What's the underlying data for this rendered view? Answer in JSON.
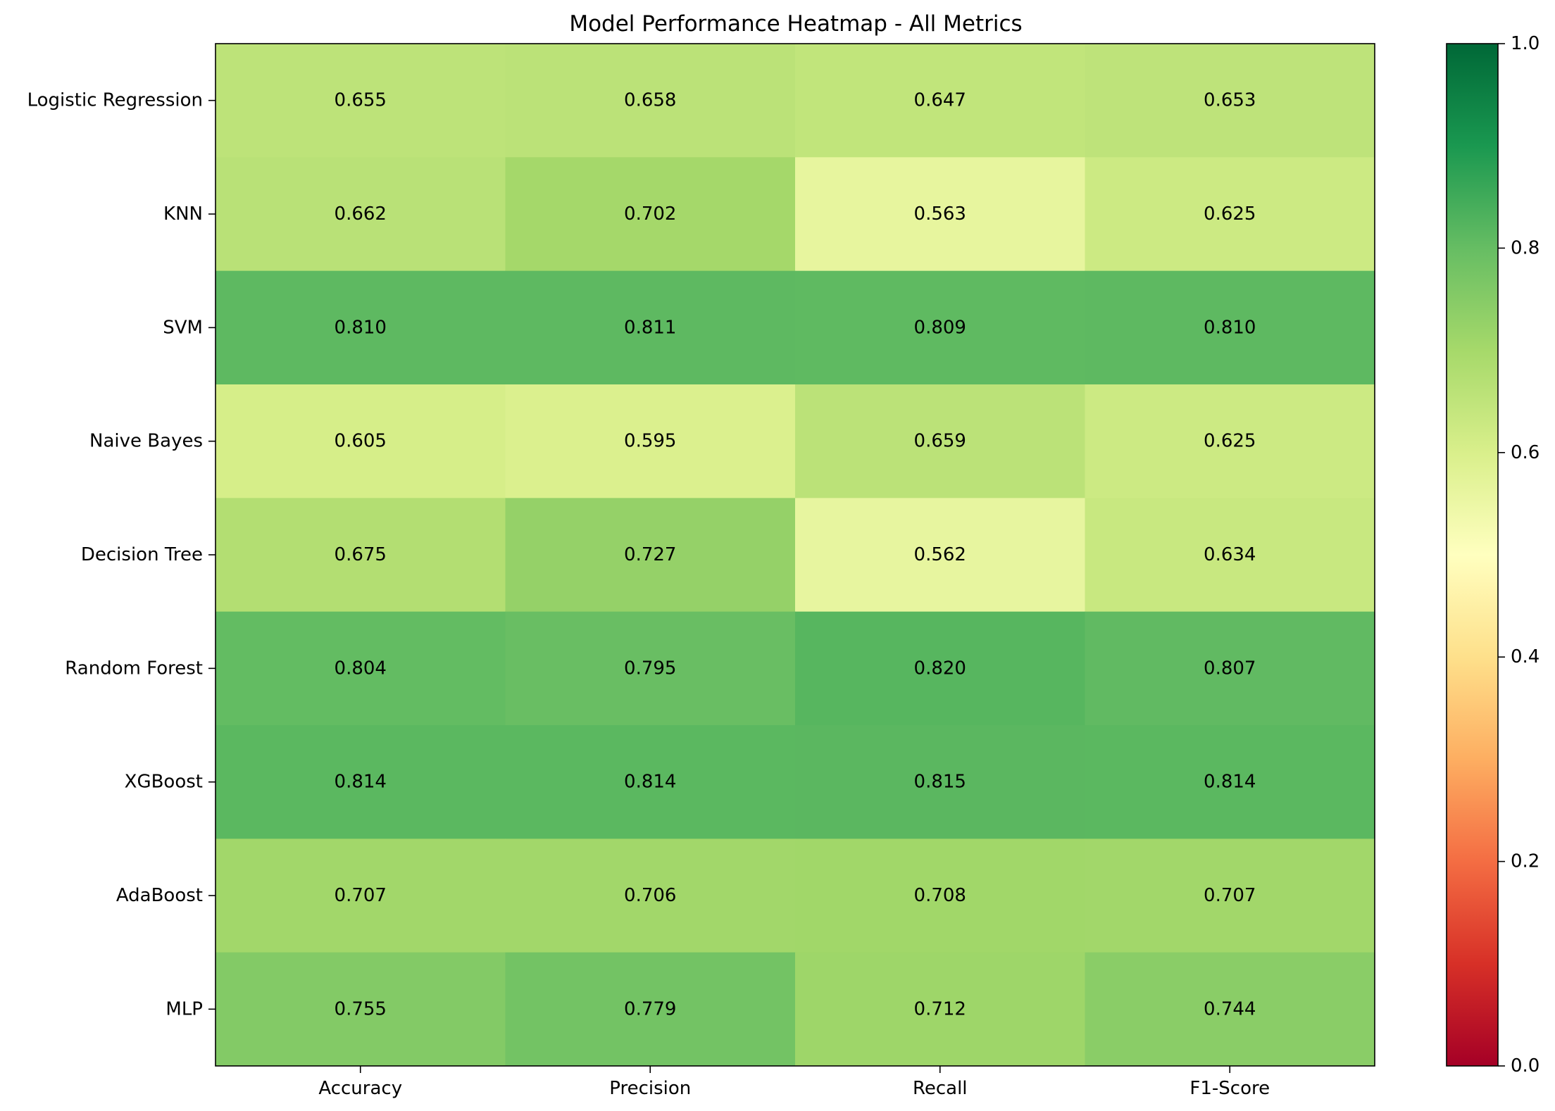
{
  "chart_data": {
    "type": "heatmap",
    "title": "Model Performance Heatmap - All Metrics",
    "xlabel": "",
    "ylabel": "",
    "columns": [
      "Accuracy",
      "Precision",
      "Recall",
      "F1-Score"
    ],
    "rows": [
      "Logistic Regression",
      "KNN",
      "SVM",
      "Naive Bayes",
      "Decision Tree",
      "Random Forest",
      "XGBoost",
      "AdaBoost",
      "MLP"
    ],
    "values": [
      [
        0.655,
        0.658,
        0.647,
        0.653
      ],
      [
        0.662,
        0.702,
        0.563,
        0.625
      ],
      [
        0.81,
        0.811,
        0.809,
        0.81
      ],
      [
        0.605,
        0.595,
        0.659,
        0.625
      ],
      [
        0.675,
        0.727,
        0.562,
        0.634
      ],
      [
        0.804,
        0.795,
        0.82,
        0.807
      ],
      [
        0.814,
        0.814,
        0.815,
        0.814
      ],
      [
        0.707,
        0.706,
        0.708,
        0.707
      ],
      [
        0.755,
        0.779,
        0.712,
        0.744
      ]
    ],
    "value_labels": [
      [
        "0.655",
        "0.658",
        "0.647",
        "0.653"
      ],
      [
        "0.662",
        "0.702",
        "0.563",
        "0.625"
      ],
      [
        "0.810",
        "0.811",
        "0.809",
        "0.810"
      ],
      [
        "0.605",
        "0.595",
        "0.659",
        "0.625"
      ],
      [
        "0.675",
        "0.727",
        "0.562",
        "0.634"
      ],
      [
        "0.804",
        "0.795",
        "0.820",
        "0.807"
      ],
      [
        "0.814",
        "0.814",
        "0.815",
        "0.814"
      ],
      [
        "0.707",
        "0.706",
        "0.708",
        "0.707"
      ],
      [
        "0.755",
        "0.779",
        "0.712",
        "0.744"
      ]
    ],
    "colormap": "RdYlGn",
    "vmin": 0.0,
    "vmax": 1.0,
    "colorbar": {
      "ticks": [
        0.0,
        0.2,
        0.4,
        0.6,
        0.8,
        1.0
      ],
      "tick_labels": [
        "0.0",
        "0.2",
        "0.4",
        "0.6",
        "0.8",
        "1.0"
      ]
    },
    "grid": false,
    "legend": "colorbar-right"
  }
}
